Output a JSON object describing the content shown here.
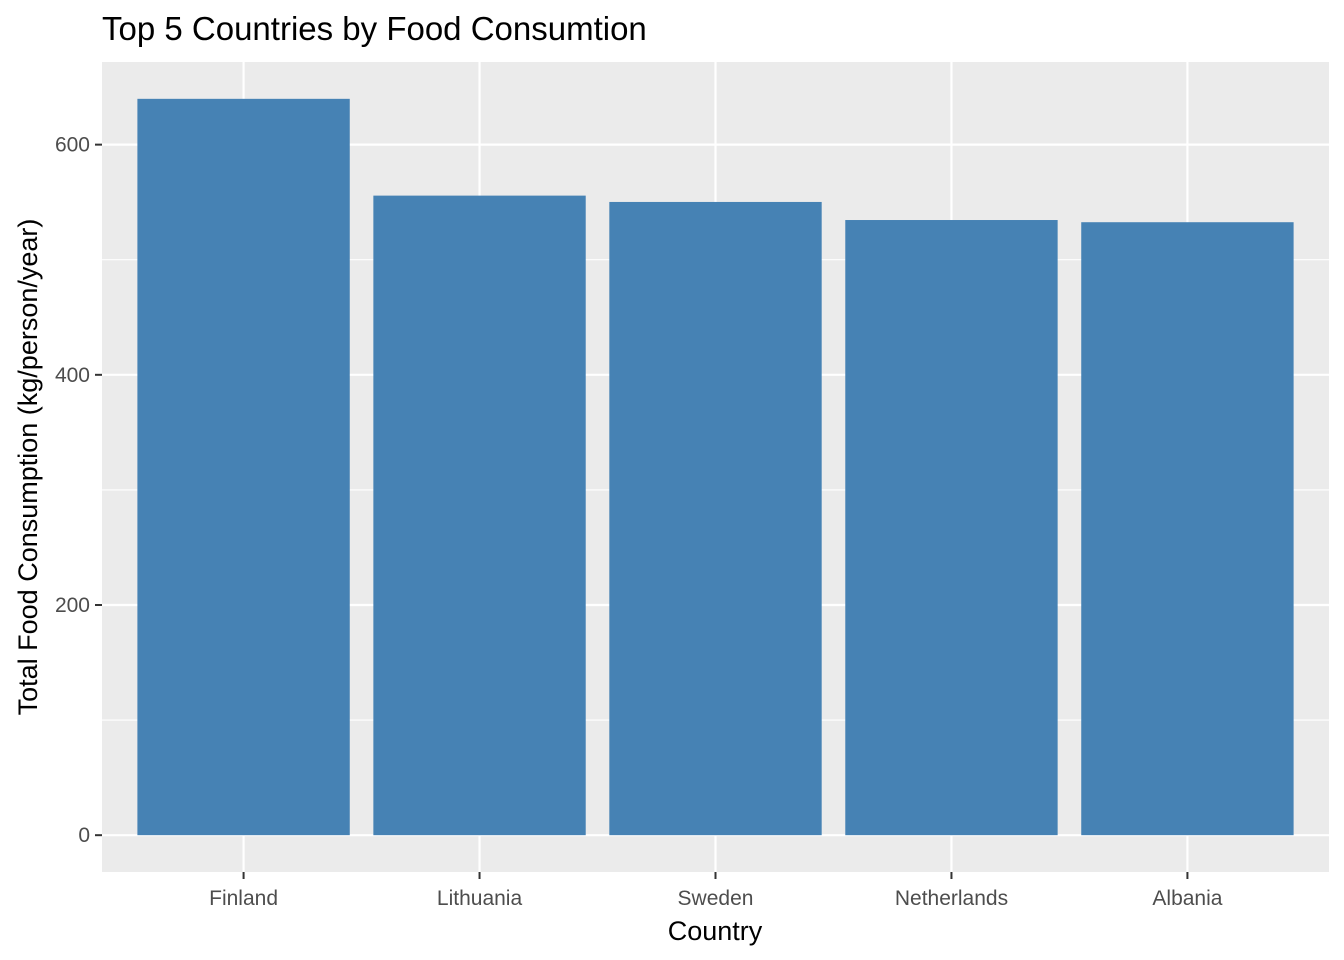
{
  "chart_data": {
    "type": "bar",
    "title": "Top 5 Countries by Food Consumtion",
    "xlabel": "Country",
    "ylabel": "Total Food Consumption (kg/person/year)",
    "categories": [
      "Finland",
      "Lithuania",
      "Sweden",
      "Netherlands",
      "Albania"
    ],
    "values": [
      639.8,
      555.7,
      550.2,
      534.5,
      532.6
    ],
    "ylim": [
      -31.99,
      671.8
    ],
    "yticks": [
      0,
      200,
      400,
      600
    ],
    "ytick_labels": [
      "0",
      "200",
      "400",
      "600"
    ],
    "grid": true,
    "legend": "none",
    "colors": {
      "bar": "#4682B4",
      "panel_background": "#EBEBEB",
      "grid": "#FFFFFF",
      "tick": "#333333"
    }
  }
}
